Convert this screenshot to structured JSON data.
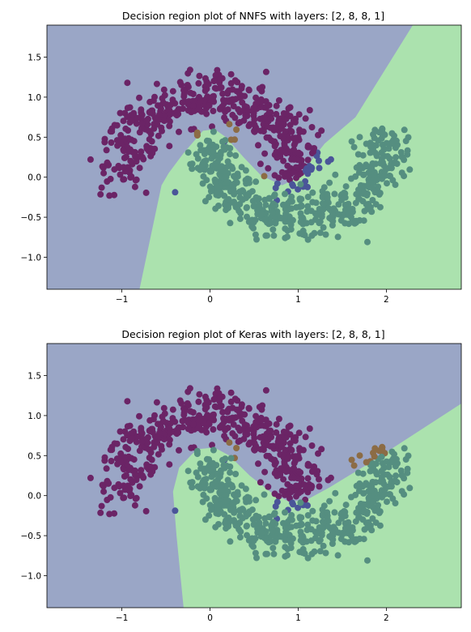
{
  "chart_data": [
    {
      "type": "scatter",
      "title": "Decision region plot of NNFS with layers: [2, 8, 8, 1]",
      "xlim": [
        -1.85,
        2.85
      ],
      "ylim": [
        -1.4,
        1.9
      ],
      "xticks": [
        -1,
        0,
        1,
        2
      ],
      "xtick_labels": [
        "−1",
        "0",
        "1",
        "2"
      ],
      "yticks": [
        -1.0,
        -0.5,
        0.0,
        0.5,
        1.0,
        1.5
      ],
      "ytick_labels": [
        "−1.0",
        "−0.5",
        "0.0",
        "0.5",
        "1.0",
        "1.5"
      ],
      "grid": false,
      "region_colors": {
        "class_0": "#9aa6c6",
        "class_1": "#abe2ae"
      },
      "boundary": [
        [
          -0.8,
          -1.4
        ],
        [
          -0.55,
          -0.1
        ],
        [
          -0.47,
          0.05
        ],
        [
          -0.3,
          0.3
        ],
        [
          -0.08,
          0.58
        ],
        [
          0.05,
          0.6
        ],
        [
          0.18,
          0.5
        ],
        [
          0.38,
          0.25
        ],
        [
          0.58,
          0.02
        ],
        [
          0.82,
          -0.1
        ],
        [
          1.0,
          0.0
        ],
        [
          1.3,
          0.42
        ],
        [
          1.65,
          0.75
        ],
        [
          2.3,
          1.9
        ]
      ]
    },
    {
      "type": "scatter",
      "title": "Decision region plot of Keras with layers: [2, 8, 8, 1]",
      "xlim": [
        -1.85,
        2.85
      ],
      "ylim": [
        -1.4,
        1.9
      ],
      "xticks": [
        -1,
        0,
        1,
        2
      ],
      "xtick_labels": [
        "−1",
        "0",
        "1",
        "2"
      ],
      "yticks": [
        -1.0,
        -0.5,
        0.0,
        0.5,
        1.0,
        1.5
      ],
      "ytick_labels": [
        "−1.0",
        "−0.5",
        "0.0",
        "0.5",
        "1.0",
        "1.5"
      ],
      "grid": false,
      "region_colors": {
        "class_0": "#9aa6c6",
        "class_1": "#abe2ae"
      },
      "boundary": [
        [
          -0.3,
          -1.4
        ],
        [
          -0.38,
          -0.5
        ],
        [
          -0.42,
          0.05
        ],
        [
          -0.35,
          0.35
        ],
        [
          -0.15,
          0.58
        ],
        [
          0.05,
          0.6
        ],
        [
          0.22,
          0.5
        ],
        [
          0.45,
          0.25
        ],
        [
          0.68,
          0.05
        ],
        [
          0.9,
          -0.08
        ],
        [
          1.1,
          -0.05
        ],
        [
          1.35,
          0.1
        ],
        [
          1.8,
          0.4
        ],
        [
          2.85,
          1.15
        ]
      ]
    }
  ],
  "points": {
    "class_0_color": "#6b2466",
    "class_1_color": "#558e80",
    "misclass_0_color": "#4a5599",
    "misclass_1_color": "#8c6c45",
    "n_class": 500,
    "noise": 0.1,
    "seed": 7
  }
}
